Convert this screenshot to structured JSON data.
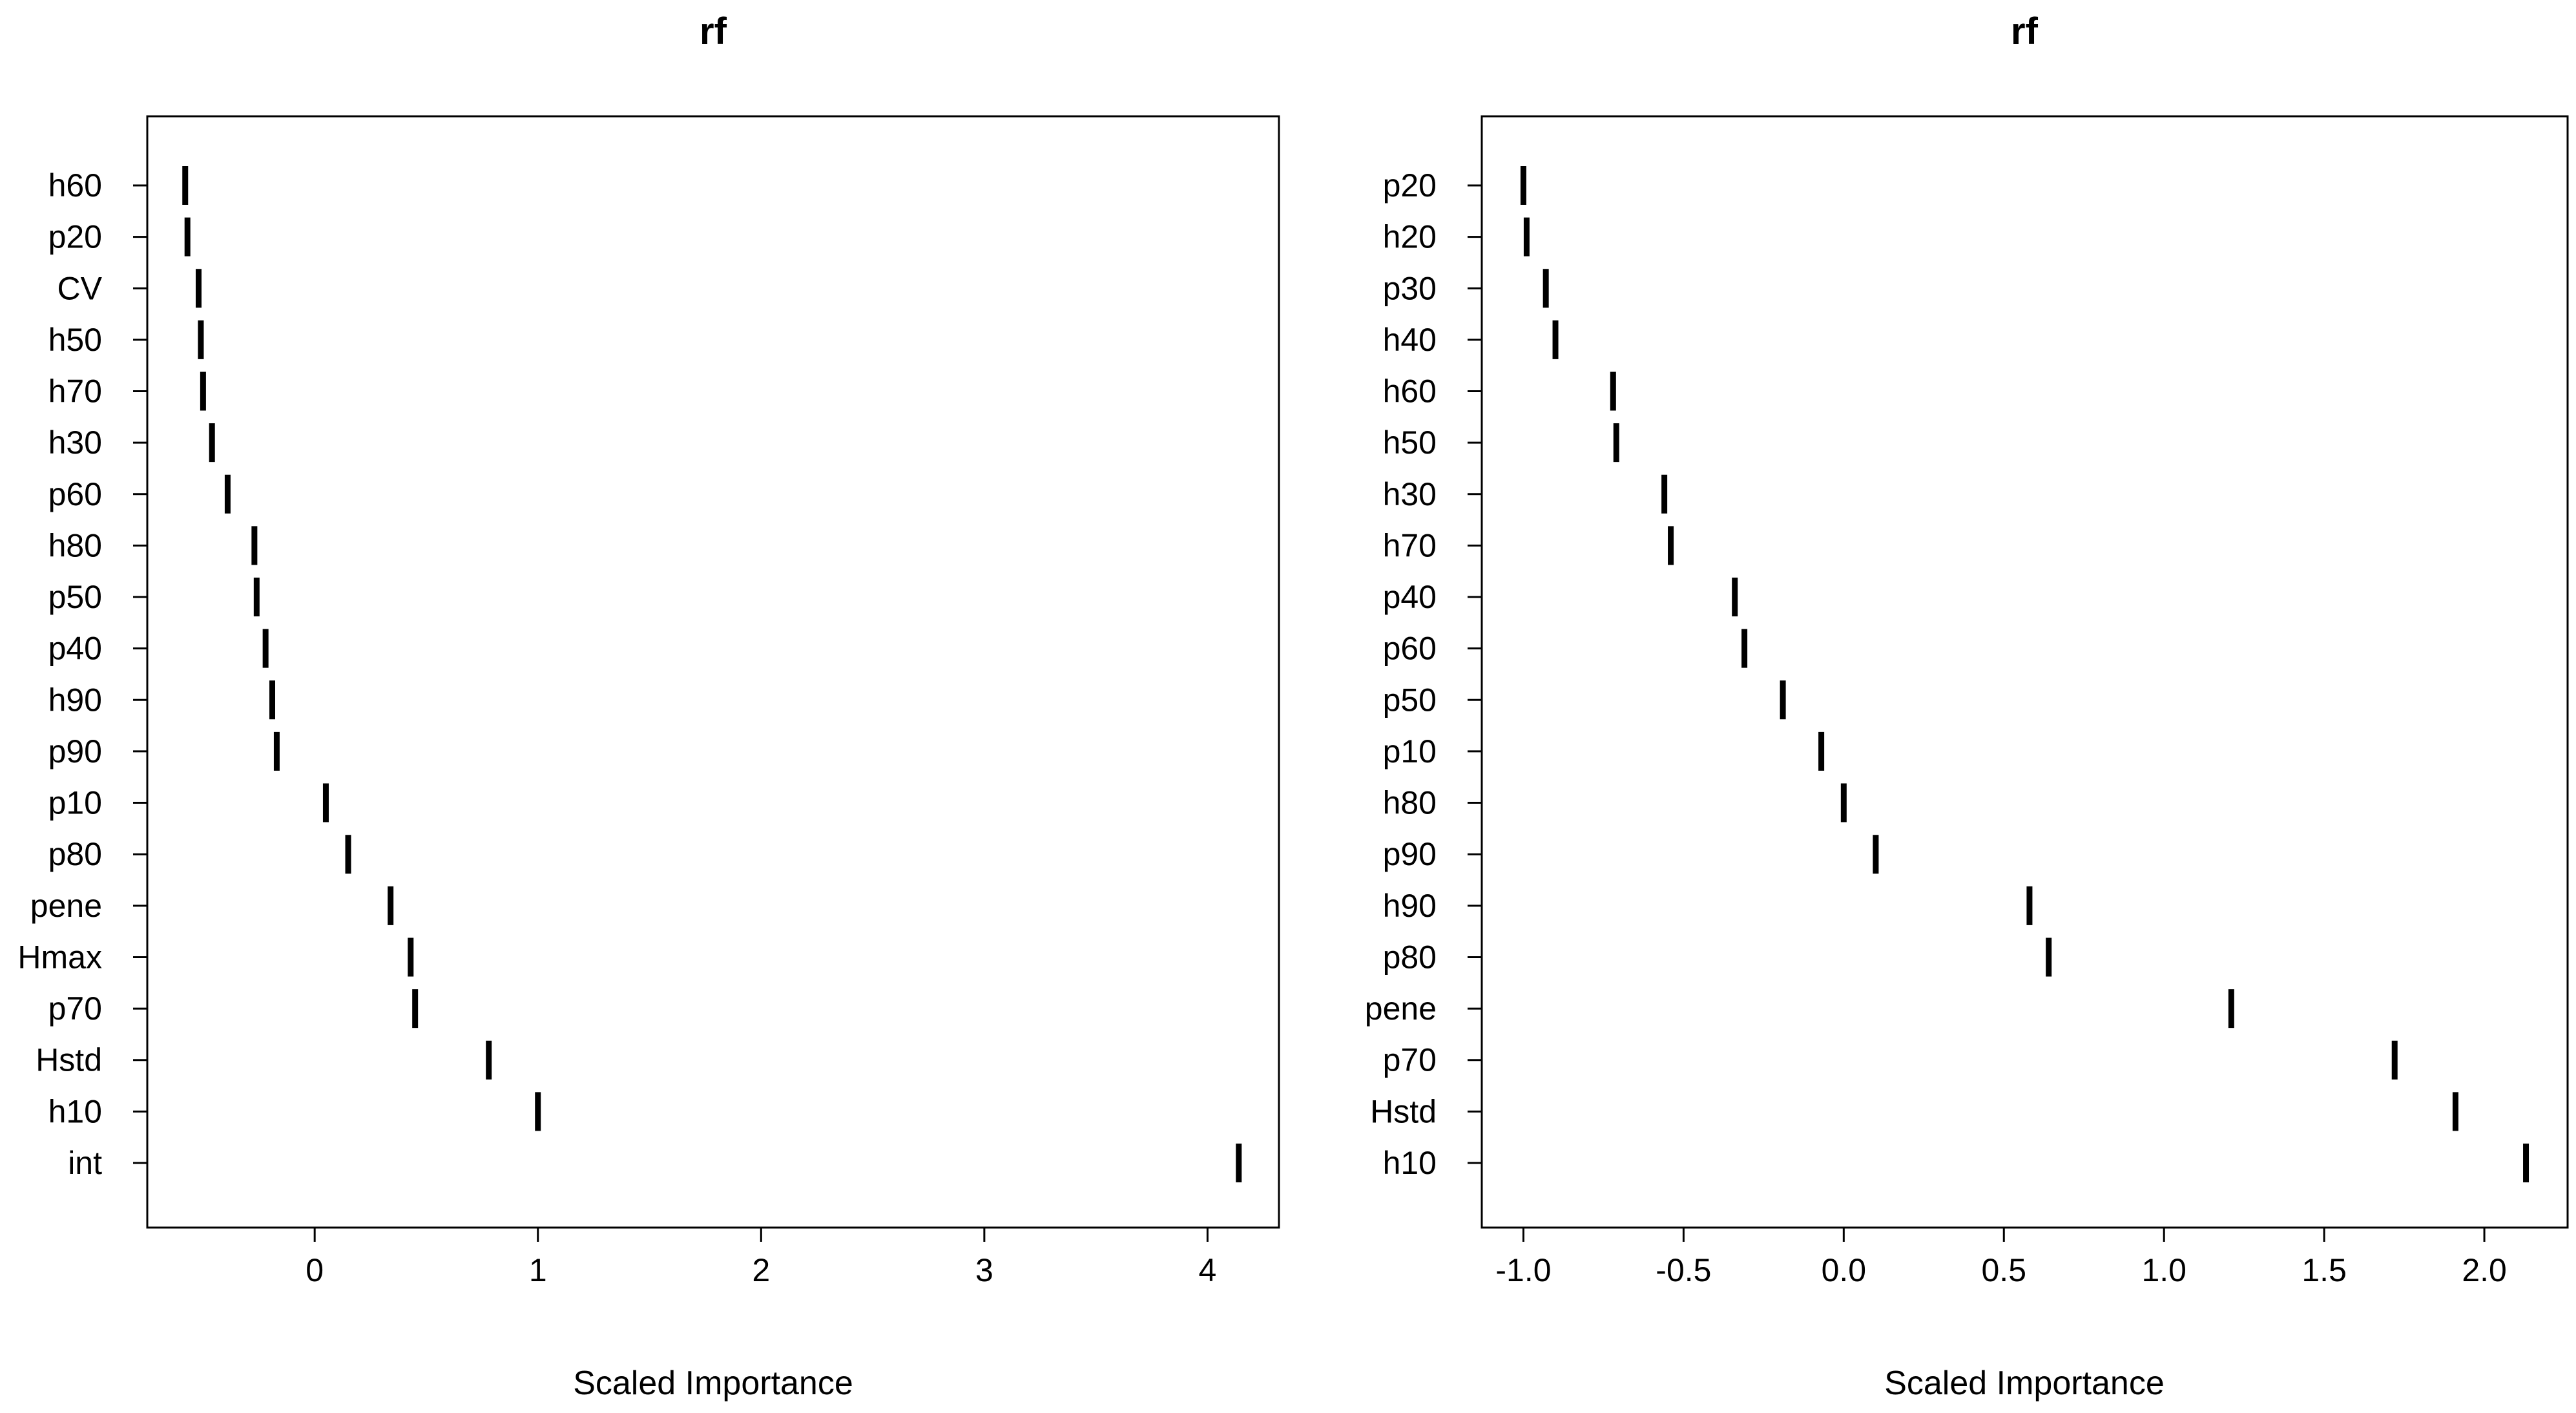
{
  "chart_data": [
    {
      "type": "scatter",
      "title": "rf",
      "xlabel": "Scaled Importance",
      "ylabel": "",
      "xlim": [
        -0.75,
        4.32
      ],
      "x_ticks": [
        0,
        1,
        2,
        3,
        4
      ],
      "x_tick_labels": [
        "0",
        "1",
        "2",
        "3",
        "4"
      ],
      "grid": false,
      "legend": "none",
      "categories": [
        "h60",
        "p20",
        "CV",
        "h50",
        "h70",
        "h30",
        "p60",
        "h80",
        "p50",
        "p40",
        "h90",
        "p90",
        "p10",
        "p80",
        "pene",
        "Hmax",
        "p70",
        "Hstd",
        "h10",
        "int"
      ],
      "values": [
        -0.58,
        -0.57,
        -0.52,
        -0.51,
        -0.5,
        -0.46,
        -0.39,
        -0.27,
        -0.26,
        -0.22,
        -0.19,
        -0.17,
        0.05,
        0.15,
        0.34,
        0.43,
        0.45,
        0.78,
        1.0,
        4.14
      ]
    },
    {
      "type": "scatter",
      "title": "rf",
      "xlabel": "Scaled Importance",
      "ylabel": "",
      "xlim": [
        -1.13,
        2.26
      ],
      "x_ticks": [
        -1.0,
        -0.5,
        0.0,
        0.5,
        1.0,
        1.5,
        2.0
      ],
      "x_tick_labels": [
        "-1.0",
        "-0.5",
        "0.0",
        "0.5",
        "1.0",
        "1.5",
        "2.0"
      ],
      "grid": false,
      "legend": "none",
      "categories": [
        "p20",
        "h20",
        "p30",
        "h40",
        "h60",
        "h50",
        "h30",
        "h70",
        "p40",
        "p60",
        "p50",
        "p10",
        "h80",
        "p90",
        "h90",
        "p80",
        "pene",
        "p70",
        "Hstd",
        "h10"
      ],
      "values": [
        -1.0,
        -0.99,
        -0.93,
        -0.9,
        -0.72,
        -0.71,
        -0.56,
        -0.54,
        -0.34,
        -0.31,
        -0.19,
        -0.07,
        0.0,
        0.1,
        0.58,
        0.64,
        1.21,
        1.72,
        1.91,
        2.13
      ]
    }
  ],
  "colors": {
    "background": "#ffffff",
    "axis": "#000000",
    "marker": "#000000",
    "text": "#000000"
  }
}
